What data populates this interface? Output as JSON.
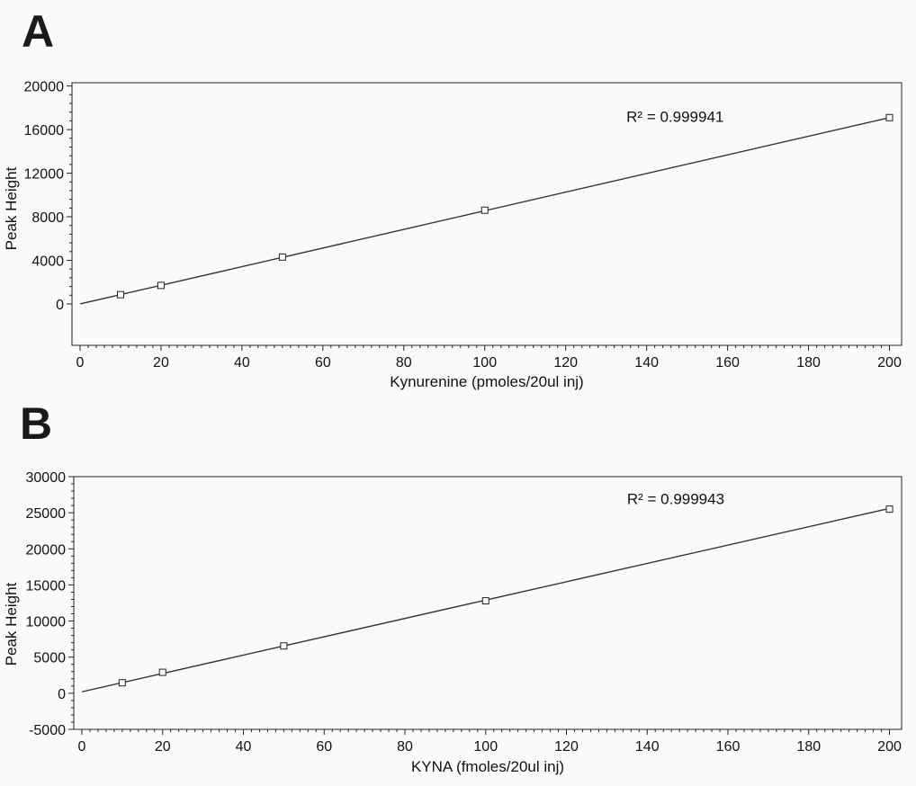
{
  "panels": {
    "a": {
      "letter": "A"
    },
    "b": {
      "letter": "B"
    }
  },
  "chart_data": [
    {
      "type": "scatter",
      "panel": "A",
      "title": "",
      "xlabel": "Kynurenine (pmoles/20ul inj)",
      "ylabel": "Peak Height",
      "xlim": [
        -2,
        203
      ],
      "ylim": [
        -3800,
        20300
      ],
      "xticks": [
        0,
        20,
        40,
        60,
        80,
        100,
        120,
        140,
        160,
        180,
        200
      ],
      "yticks": [
        0,
        4000,
        8000,
        12000,
        16000,
        20000
      ],
      "points": {
        "x": [
          10,
          20,
          50,
          100,
          200
        ],
        "y": [
          850,
          1700,
          4300,
          8600,
          17100
        ]
      },
      "fit_line": {
        "x": [
          0,
          200
        ],
        "y": [
          0,
          17100
        ]
      },
      "annotation": {
        "text": "R² = 0.999941",
        "at": [
          135,
          16700
        ]
      },
      "grid": false
    },
    {
      "type": "scatter",
      "panel": "B",
      "title": "",
      "xlabel": "KYNA (fmoles/20ul inj)",
      "ylabel": "Peak Height",
      "xlim": [
        -2,
        203
      ],
      "ylim": [
        -5000,
        30000
      ],
      "xticks": [
        0,
        20,
        40,
        60,
        80,
        100,
        120,
        140,
        160,
        180,
        200
      ],
      "yticks": [
        -5000,
        0,
        5000,
        10000,
        15000,
        20000,
        25000,
        30000
      ],
      "points": {
        "x": [
          10,
          20,
          50,
          100,
          200
        ],
        "y": [
          1450,
          2900,
          6550,
          12800,
          25500
        ]
      },
      "fit_line": {
        "x": [
          0,
          200
        ],
        "y": [
          200,
          25600
        ]
      },
      "annotation": {
        "text": "R² = 0.999943",
        "at": [
          135,
          26200
        ]
      },
      "grid": false
    }
  ]
}
